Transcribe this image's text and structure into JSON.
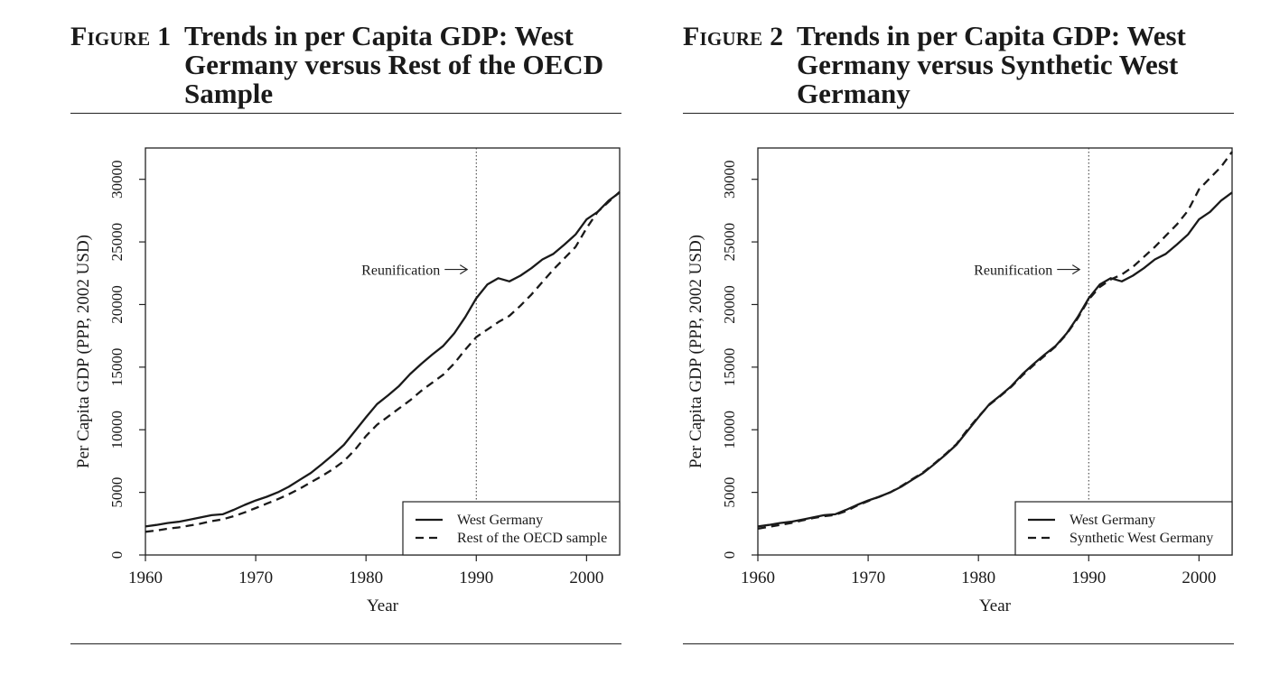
{
  "figures": [
    {
      "label": "Figure 1",
      "title": "Trends in per Capita GDP: West Germany versus Rest of the OECD Sample"
    },
    {
      "label": "Figure 2",
      "title": "Trends in per Capita GDP: West Germany versus Synthetic West Germany"
    }
  ],
  "chart_data": [
    {
      "type": "line",
      "xlabel": "Year",
      "ylabel": "Per Capita GDP (PPP, 2002 USD)",
      "xlim": [
        1960,
        2003
      ],
      "ylim": [
        0,
        32500
      ],
      "xticks": [
        1960,
        1970,
        1980,
        1990,
        2000
      ],
      "yticks": [
        0,
        5000,
        10000,
        15000,
        20000,
        25000,
        30000
      ],
      "grid": false,
      "legend_position": "bottom-right",
      "vline": {
        "x": 1990,
        "style": "dotted"
      },
      "annotation": {
        "text": "Reunification",
        "x": 1990,
        "y": 22800
      },
      "x": [
        1960,
        1961,
        1962,
        1963,
        1964,
        1965,
        1966,
        1967,
        1968,
        1969,
        1970,
        1971,
        1972,
        1973,
        1974,
        1975,
        1976,
        1977,
        1978,
        1979,
        1980,
        1981,
        1982,
        1983,
        1984,
        1985,
        1986,
        1987,
        1988,
        1989,
        1990,
        1991,
        1992,
        1993,
        1994,
        1995,
        1996,
        1997,
        1998,
        1999,
        2000,
        2001,
        2002,
        2003
      ],
      "series": [
        {
          "name": "West Germany",
          "style": "solid",
          "values": [
            2280,
            2400,
            2550,
            2650,
            2820,
            3000,
            3180,
            3250,
            3600,
            4000,
            4350,
            4650,
            5000,
            5450,
            6000,
            6550,
            7250,
            8000,
            8800,
            9900,
            11000,
            12050,
            12750,
            13500,
            14450,
            15250,
            16000,
            16700,
            17700,
            19000,
            20500,
            21600,
            22100,
            21850,
            22300,
            22900,
            23600,
            24050,
            24800,
            25600,
            26800,
            27400,
            28300,
            28950
          ]
        },
        {
          "name": "Rest of the OECD sample",
          "style": "dashed",
          "values": [
            1850,
            1950,
            2100,
            2200,
            2350,
            2500,
            2700,
            2850,
            3100,
            3400,
            3750,
            4100,
            4450,
            4850,
            5300,
            5800,
            6300,
            6850,
            7500,
            8400,
            9500,
            10400,
            11050,
            11700,
            12350,
            13100,
            13750,
            14400,
            15300,
            16400,
            17400,
            18000,
            18600,
            19100,
            19900,
            20800,
            21800,
            22800,
            23700,
            24600,
            26100,
            27400,
            28200,
            29000
          ]
        }
      ]
    },
    {
      "type": "line",
      "xlabel": "Year",
      "ylabel": "Per Capita GDP (PPP, 2002 USD)",
      "xlim": [
        1960,
        2003
      ],
      "ylim": [
        0,
        32500
      ],
      "xticks": [
        1960,
        1970,
        1980,
        1990,
        2000
      ],
      "yticks": [
        0,
        5000,
        10000,
        15000,
        20000,
        25000,
        30000
      ],
      "grid": false,
      "legend_position": "bottom-right",
      "vline": {
        "x": 1990,
        "style": "dotted"
      },
      "annotation": {
        "text": "Reunification",
        "x": 1990,
        "y": 22800
      },
      "x": [
        1960,
        1961,
        1962,
        1963,
        1964,
        1965,
        1966,
        1967,
        1968,
        1969,
        1970,
        1971,
        1972,
        1973,
        1974,
        1975,
        1976,
        1977,
        1978,
        1979,
        1980,
        1981,
        1982,
        1983,
        1984,
        1985,
        1986,
        1987,
        1988,
        1989,
        1990,
        1991,
        1992,
        1993,
        1994,
        1995,
        1996,
        1997,
        1998,
        1999,
        2000,
        2001,
        2002,
        2003
      ],
      "series": [
        {
          "name": "West Germany",
          "style": "solid",
          "values": [
            2280,
            2400,
            2550,
            2650,
            2820,
            3000,
            3180,
            3250,
            3600,
            4000,
            4350,
            4650,
            5000,
            5450,
            6000,
            6550,
            7250,
            8000,
            8800,
            9900,
            11000,
            12050,
            12750,
            13500,
            14450,
            15250,
            16000,
            16700,
            17700,
            19000,
            20500,
            21600,
            22100,
            21850,
            22300,
            22900,
            23600,
            24050,
            24800,
            25600,
            26800,
            27400,
            28300,
            28950
          ]
        },
        {
          "name": "Synthetic West Germany",
          "style": "dashed",
          "values": [
            2100,
            2250,
            2400,
            2550,
            2750,
            2950,
            3100,
            3200,
            3500,
            3950,
            4300,
            4650,
            5000,
            5500,
            6050,
            6600,
            7300,
            8050,
            8850,
            10000,
            11050,
            12000,
            12700,
            13450,
            14350,
            15150,
            15900,
            16650,
            17650,
            18900,
            20400,
            21400,
            22000,
            22400,
            23000,
            23800,
            24600,
            25500,
            26400,
            27500,
            29200,
            30100,
            31000,
            32200
          ]
        }
      ]
    }
  ]
}
